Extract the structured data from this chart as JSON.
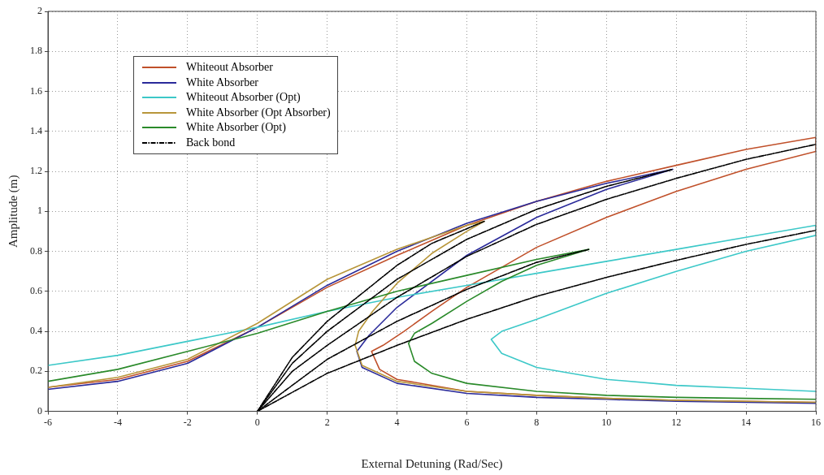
{
  "chart_data": {
    "type": "line",
    "xlabel": "External Detuning (Rad/Sec)",
    "ylabel": "Amplitude (m)",
    "xlim": [
      -6,
      16
    ],
    "ylim": [
      0,
      2
    ],
    "xticks": [
      -6,
      -4,
      -2,
      0,
      2,
      4,
      6,
      8,
      10,
      12,
      14,
      16
    ],
    "yticks": [
      0,
      0.2,
      0.4,
      0.6,
      0.8,
      1,
      1.2,
      1.4,
      1.6,
      1.8,
      2
    ],
    "grid": true,
    "legend": "top left",
    "marker": "none",
    "line_style": "solid",
    "series": [
      {
        "name": "Whiteout Absorber",
        "color": "#c0502a",
        "x": [
          -6,
          -4,
          -2,
          0,
          2,
          4,
          6,
          8,
          10,
          12,
          14,
          16,
          16,
          14,
          12,
          10,
          8,
          6,
          5,
          4.2,
          3.6,
          3.27,
          3.5,
          4,
          6,
          8,
          10,
          12,
          14,
          16
        ],
        "values": [
          0.12,
          0.16,
          0.25,
          0.42,
          0.62,
          0.78,
          0.93,
          1.05,
          1.15,
          1.23,
          1.31,
          1.37,
          1.3,
          1.21,
          1.1,
          0.97,
          0.82,
          0.62,
          0.5,
          0.4,
          0.33,
          0.3,
          0.21,
          0.16,
          0.1,
          0.08,
          0.065,
          0.055,
          0.05,
          0.045
        ]
      },
      {
        "name": "White Absorber",
        "color": "#2a2a9a",
        "x": [
          -6,
          -4,
          -2,
          0,
          2,
          4,
          6,
          8,
          10,
          11.9,
          10,
          8,
          6,
          4,
          3.2,
          2.85,
          3,
          4,
          6,
          8,
          10,
          12,
          14,
          16
        ],
        "values": [
          0.11,
          0.15,
          0.24,
          0.42,
          0.63,
          0.8,
          0.94,
          1.05,
          1.14,
          1.21,
          1.11,
          0.97,
          0.78,
          0.52,
          0.38,
          0.3,
          0.22,
          0.14,
          0.09,
          0.07,
          0.06,
          0.05,
          0.045,
          0.04
        ]
      },
      {
        "name": "Whiteout Absorber (Opt)",
        "color": "#3cc8c8",
        "x": [
          -6,
          -4,
          -2,
          0,
          2,
          4,
          6,
          8,
          10,
          12,
          14,
          16,
          16,
          14,
          12,
          10,
          8,
          7,
          6.7,
          7,
          8,
          10,
          12,
          14,
          16
        ],
        "values": [
          0.23,
          0.28,
          0.35,
          0.42,
          0.5,
          0.57,
          0.63,
          0.69,
          0.75,
          0.81,
          0.87,
          0.93,
          0.88,
          0.8,
          0.7,
          0.59,
          0.46,
          0.4,
          0.36,
          0.29,
          0.22,
          0.16,
          0.13,
          0.115,
          0.1
        ]
      },
      {
        "name": "White Absorber (Opt Absorber)",
        "color": "#b8963a",
        "x": [
          -6,
          -4,
          -2,
          0,
          2,
          4,
          6,
          6.5,
          6,
          5,
          4,
          3.3,
          2.9,
          2.8,
          3,
          4,
          6,
          8,
          10,
          12,
          14,
          16
        ],
        "values": [
          0.12,
          0.17,
          0.26,
          0.44,
          0.66,
          0.81,
          0.93,
          0.95,
          0.9,
          0.79,
          0.64,
          0.5,
          0.4,
          0.33,
          0.23,
          0.15,
          0.1,
          0.08,
          0.065,
          0.055,
          0.05,
          0.045
        ]
      },
      {
        "name": "White Absorber (Opt)",
        "color": "#2a8a2a",
        "x": [
          -6,
          -4,
          -2,
          0,
          2,
          4,
          6,
          8,
          9.5,
          8,
          7,
          6,
          5,
          4.5,
          4.33,
          4.5,
          5,
          6,
          8,
          10,
          12,
          14,
          16
        ],
        "values": [
          0.15,
          0.21,
          0.3,
          0.39,
          0.5,
          0.6,
          0.68,
          0.76,
          0.81,
          0.73,
          0.65,
          0.55,
          0.44,
          0.39,
          0.34,
          0.25,
          0.19,
          0.14,
          0.1,
          0.08,
          0.07,
          0.065,
          0.06
        ]
      },
      {
        "name": "Back bond",
        "color": "#000000",
        "line_style": "dashed",
        "x": [
          0,
          1,
          2,
          4,
          6,
          8,
          10,
          12,
          14,
          16
        ],
        "values": [
          0,
          0.2,
          0.33,
          0.57,
          0.775,
          0.935,
          1.06,
          1.165,
          1.26,
          1.335
        ]
      },
      {
        "color": "#000000",
        "line_style": "dashed",
        "x": [
          0,
          1,
          2,
          4,
          6,
          8,
          10,
          11.9
        ],
        "values": [
          0,
          0.24,
          0.4,
          0.66,
          0.86,
          1.01,
          1.125,
          1.21
        ]
      },
      {
        "color": "#000000",
        "line_style": "dashed",
        "x": [
          0,
          2,
          4,
          6,
          8,
          10,
          12,
          14,
          16
        ],
        "values": [
          0,
          0.19,
          0.33,
          0.46,
          0.575,
          0.67,
          0.755,
          0.835,
          0.905
        ]
      },
      {
        "color": "#000000",
        "line_style": "dashed",
        "x": [
          0,
          1,
          2,
          4,
          5,
          6.5
        ],
        "values": [
          0,
          0.27,
          0.45,
          0.73,
          0.84,
          0.95
        ]
      },
      {
        "color": "#000000",
        "line_style": "dashed",
        "x": [
          0,
          2,
          4,
          6,
          8,
          9.5
        ],
        "values": [
          0,
          0.26,
          0.45,
          0.61,
          0.745,
          0.81
        ]
      }
    ]
  }
}
